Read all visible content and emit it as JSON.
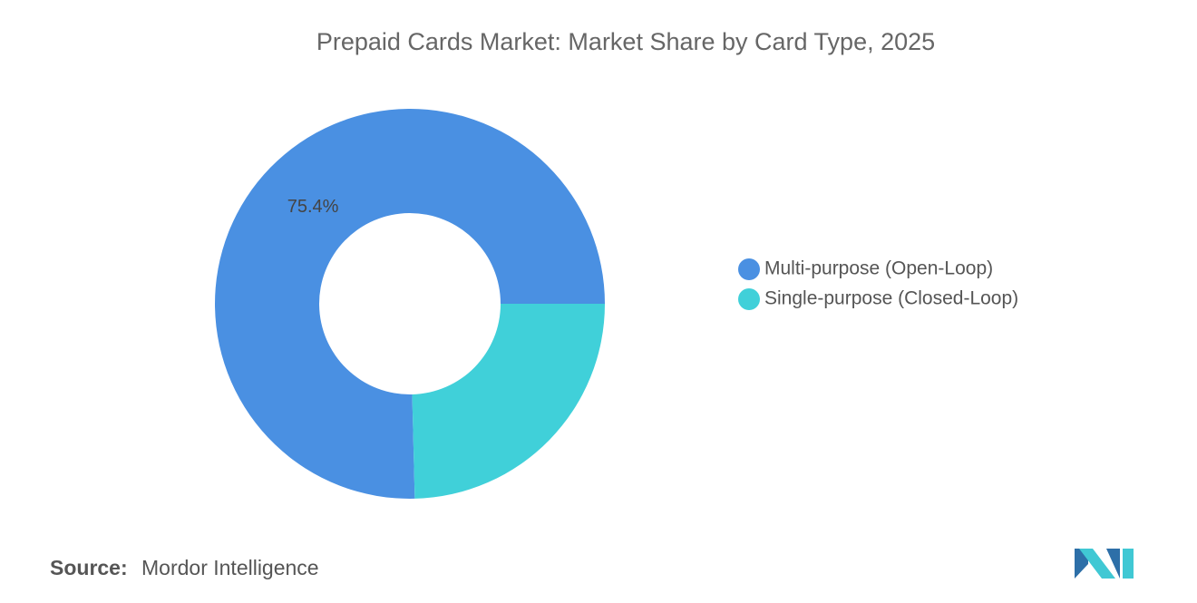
{
  "chart_data": {
    "type": "donut",
    "title": "Prepaid Cards Market: Market Share by Card Type, 2025",
    "categories": [
      "Multi-purpose (Open-Loop)",
      "Single-purpose (Closed-Loop)"
    ],
    "values": [
      75.4,
      24.6
    ],
    "value_labels": [
      "75.4%",
      null
    ],
    "colors": [
      "#4a90e2",
      "#40d0d9"
    ],
    "source_label": "Source:",
    "source": "Mordor Intelligence"
  }
}
